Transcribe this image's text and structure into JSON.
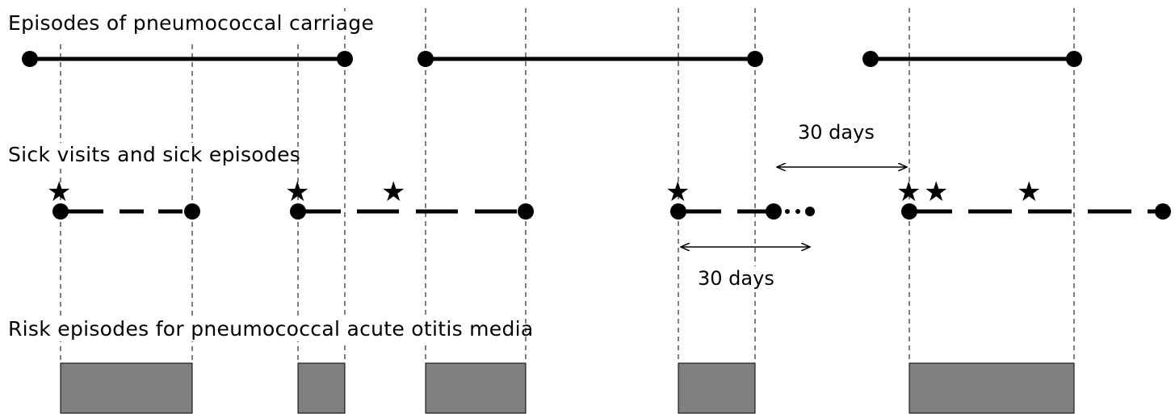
{
  "labels": {
    "carriage": "Episodes of pneumococcal carriage",
    "sick": "Sick visits and sick episodes",
    "risk": "Risk episodes for pneumococcal acute otitis media",
    "days_upper": "30 days",
    "days_lower": "30 days"
  },
  "glyphs": {
    "star": "★"
  },
  "colors": {
    "line": "#000000",
    "risk_fill": "#808080"
  }
}
